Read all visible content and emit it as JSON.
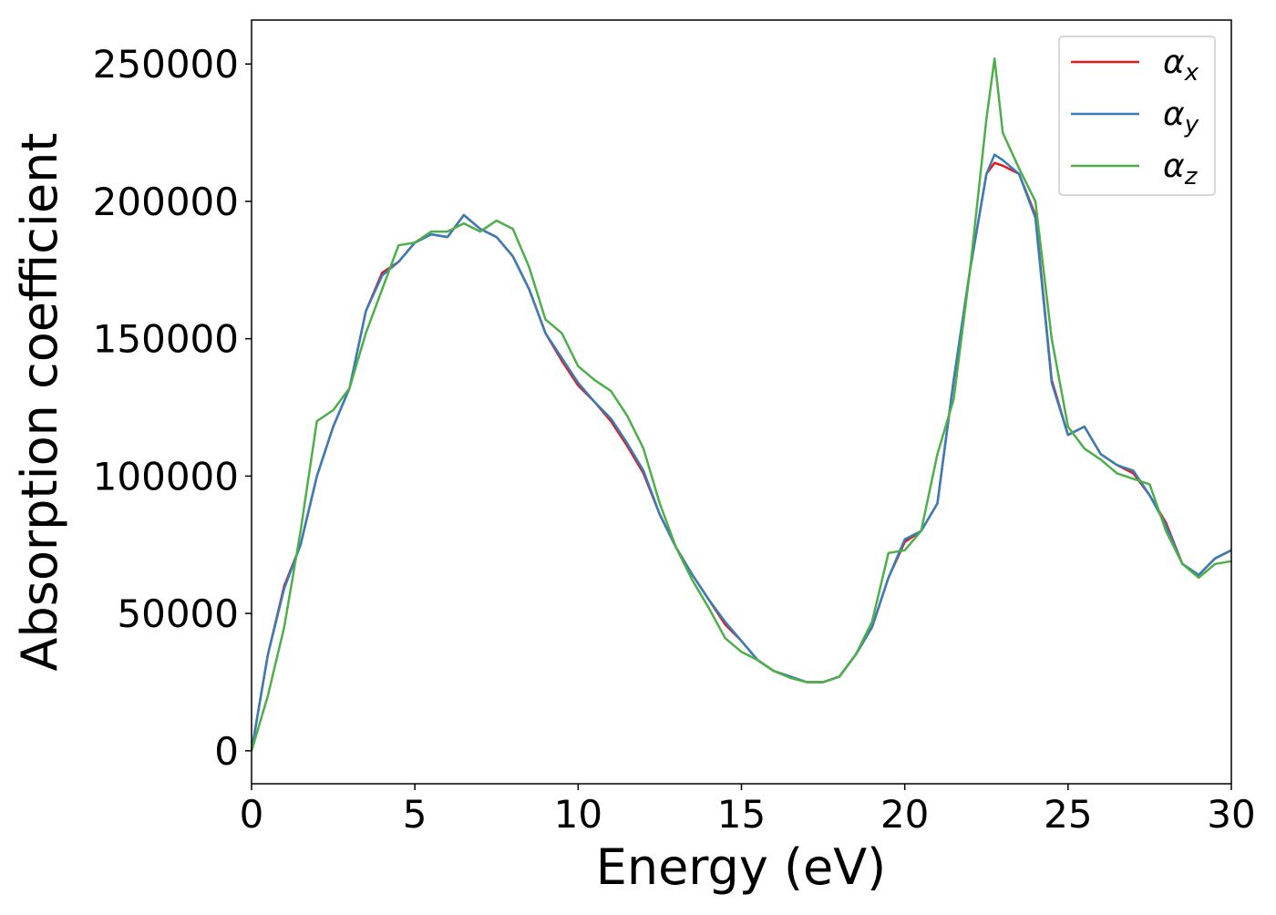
{
  "chart_data": {
    "type": "line",
    "xlabel": "Energy (eV)",
    "ylabel": "Absorption coefficient",
    "x": [
      0,
      0.5,
      1,
      1.5,
      2,
      2.5,
      3,
      3.5,
      4,
      4.5,
      5,
      5.5,
      6,
      6.5,
      7,
      7.5,
      8,
      8.5,
      9,
      9.5,
      10,
      10.5,
      11,
      11.5,
      12,
      12.5,
      13,
      13.5,
      14,
      14.5,
      15,
      15.5,
      16,
      16.5,
      17,
      17.5,
      18,
      18.5,
      19,
      19.5,
      20,
      20.5,
      21,
      21.5,
      22,
      22.5,
      22.75,
      23,
      23.5,
      24,
      24.5,
      25,
      25.5,
      26,
      26.5,
      27,
      27.5,
      28,
      28.5,
      29,
      29.5,
      30
    ],
    "series": [
      {
        "name": "αx",
        "color": "#e41a1c",
        "values": [
          0,
          35000,
          60000,
          75000,
          100000,
          118000,
          132000,
          160000,
          174000,
          178000,
          185000,
          188000,
          187000,
          195000,
          190000,
          187000,
          180000,
          168000,
          152000,
          142000,
          133000,
          127000,
          120000,
          111000,
          101000,
          86000,
          74000,
          64000,
          55000,
          46000,
          40000,
          33000,
          29000,
          27000,
          25000,
          25000,
          27000,
          35000,
          45000,
          63000,
          76000,
          80000,
          90000,
          135000,
          175000,
          210000,
          214000,
          213000,
          210000,
          195000,
          135000,
          115000,
          118000,
          108000,
          104000,
          101000,
          93000,
          83000,
          68000,
          64000,
          70000,
          73000
        ]
      },
      {
        "name": "αy",
        "color": "#377eb8",
        "values": [
          0,
          35000,
          59000,
          75000,
          100000,
          118000,
          132000,
          160000,
          173000,
          178000,
          185000,
          188000,
          187000,
          195000,
          190000,
          187000,
          180000,
          168000,
          152000,
          143000,
          134000,
          127000,
          121000,
          112000,
          102000,
          86000,
          74000,
          64000,
          55000,
          47000,
          40000,
          33000,
          29000,
          27000,
          25000,
          25000,
          27000,
          35000,
          45000,
          63000,
          77000,
          80000,
          90000,
          135000,
          175000,
          210000,
          217000,
          215000,
          210000,
          194000,
          134000,
          115000,
          118000,
          108000,
          104000,
          102000,
          93000,
          82000,
          68000,
          64000,
          70000,
          73000
        ]
      },
      {
        "name": "αz",
        "color": "#4daf4a",
        "values": [
          0,
          20000,
          45000,
          80000,
          120000,
          124000,
          132000,
          152000,
          168000,
          184000,
          185000,
          189000,
          189000,
          192000,
          189000,
          193000,
          190000,
          176000,
          157000,
          152000,
          140000,
          135000,
          131000,
          122000,
          110000,
          90000,
          74000,
          62000,
          52000,
          41000,
          36000,
          33000,
          29000,
          26500,
          25000,
          25000,
          27000,
          35000,
          47000,
          72000,
          73000,
          80000,
          108000,
          128000,
          175000,
          230000,
          252000,
          225000,
          212000,
          200000,
          150000,
          118000,
          110000,
          106000,
          101000,
          99000,
          97000,
          80000,
          68000,
          63000,
          68000,
          69000
        ]
      }
    ],
    "xlim": [
      0,
      30
    ],
    "xticks": [
      0,
      5,
      10,
      15,
      20,
      25,
      30
    ],
    "ylim": [
      -12000,
      266000
    ],
    "yticks": [
      0,
      50000,
      100000,
      150000,
      200000,
      250000
    ],
    "legend": "upper right"
  }
}
